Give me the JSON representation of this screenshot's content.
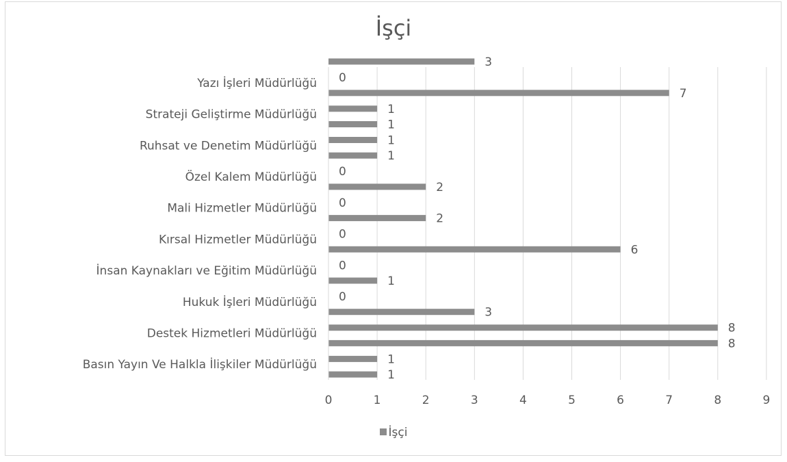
{
  "chart_data": {
    "type": "bar",
    "orientation": "horizontal",
    "title": "İşçi",
    "categories": [
      "Basın Yayın Ve Halkla İlişkiler Müdürlüğü",
      "Destek Hizmetleri Müdürlüğü",
      "Hukuk İşleri Müdürlüğü",
      "İnsan Kaynakları ve Eğitim Müdürlüğü",
      "Kırsal Hizmetler Müdürlüğü",
      "Mali Hizmetler Müdürlüğü",
      "Özel Kalem Müdürlüğü",
      "Ruhsat ve Denetim Müdürlüğü",
      "Strateji Geliştirme Müdürlüğü",
      "Yazı İşleri Müdürlüğü"
    ],
    "series": [
      {
        "name": "İşçi",
        "values": [
          1,
          8,
          0,
          0,
          0,
          0,
          0,
          1,
          1,
          0
        ]
      },
      {
        "name": "İşçi",
        "values": [
          1,
          8,
          3,
          1,
          6,
          2,
          2,
          1,
          1,
          7
        ]
      },
      {
        "name": "",
        "values": [
          null,
          null,
          null,
          null,
          null,
          null,
          null,
          null,
          null,
          3
        ]
      }
    ],
    "xticks": [
      0,
      1,
      2,
      3,
      4,
      5,
      6,
      7,
      8,
      9
    ],
    "xlim": [
      0,
      9
    ],
    "xlabel": "",
    "ylabel": "",
    "grid": "vertical",
    "legend": "bottom",
    "legend_label": "İşçi",
    "bar_color": "#8c8c8c",
    "grid_color": "#d9d9d9"
  }
}
